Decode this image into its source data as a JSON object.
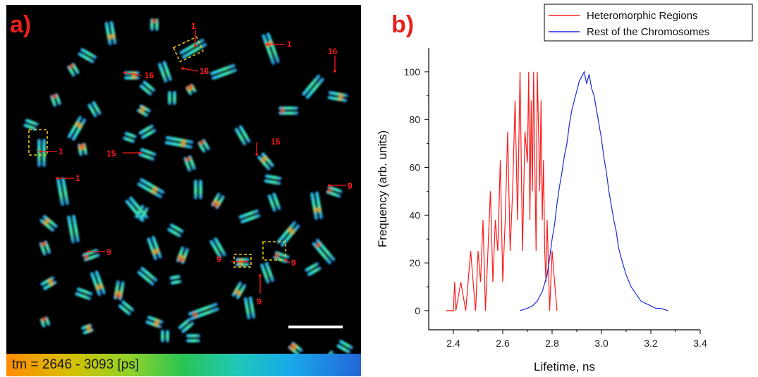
{
  "panel_a": {
    "letter": "a)",
    "colorbar_label": "tm = 2646 - 3093 [ps]",
    "annotation_color": "#ff1a1a",
    "box_color": "#e6c21f",
    "annotations": [
      "1",
      "1",
      "16",
      "16",
      "16",
      "1",
      "1",
      "15",
      "15",
      "9",
      "9",
      "9",
      "9",
      "9"
    ]
  },
  "panel_b": {
    "letter": "b)"
  },
  "chart_data": {
    "type": "line",
    "xlabel": "Lifetime, ns",
    "ylabel": "Frequency (arb. units)",
    "xlim": [
      2.3,
      3.4
    ],
    "ylim": [
      -8,
      110
    ],
    "xticks": [
      "2.4",
      "2.6",
      "2.8",
      "3.0",
      "3.2",
      "3.4"
    ],
    "yticks": [
      "0",
      "20",
      "40",
      "60",
      "80",
      "100"
    ],
    "legend_position": "top-right",
    "series": [
      {
        "name": "Heteromorphic Regions",
        "color": "#ff1a1a",
        "x": [
          2.37,
          2.4,
          2.405,
          2.41,
          2.43,
          2.45,
          2.47,
          2.48,
          2.49,
          2.5,
          2.51,
          2.52,
          2.53,
          2.54,
          2.55,
          2.56,
          2.57,
          2.58,
          2.59,
          2.6,
          2.61,
          2.62,
          2.63,
          2.64,
          2.65,
          2.66,
          2.67,
          2.68,
          2.69,
          2.7,
          2.705,
          2.71,
          2.715,
          2.72,
          2.725,
          2.73,
          2.735,
          2.74,
          2.745,
          2.75,
          2.755,
          2.76,
          2.765,
          2.77,
          2.775,
          2.78,
          2.79,
          2.8,
          2.81,
          2.82
        ],
        "y": [
          0,
          0,
          12,
          0,
          12,
          0,
          25,
          12,
          0,
          25,
          12,
          38,
          0,
          25,
          50,
          12,
          38,
          25,
          63,
          12,
          38,
          75,
          25,
          50,
          88,
          38,
          100,
          25,
          75,
          62,
          100,
          38,
          88,
          50,
          100,
          62,
          25,
          100,
          75,
          50,
          88,
          38,
          63,
          25,
          12,
          38,
          0,
          25,
          12,
          0
        ]
      },
      {
        "name": "Rest of the Chromosomes",
        "color": "#1a2bd6",
        "x": [
          2.67,
          2.7,
          2.72,
          2.74,
          2.76,
          2.78,
          2.79,
          2.8,
          2.81,
          2.82,
          2.83,
          2.84,
          2.85,
          2.86,
          2.87,
          2.88,
          2.89,
          2.9,
          2.91,
          2.92,
          2.93,
          2.94,
          2.95,
          2.96,
          2.97,
          2.98,
          2.99,
          3.0,
          3.01,
          3.02,
          3.03,
          3.04,
          3.05,
          3.06,
          3.07,
          3.08,
          3.1,
          3.12,
          3.14,
          3.16,
          3.18,
          3.2,
          3.22,
          3.24,
          3.27
        ],
        "y": [
          0,
          1,
          2,
          4,
          8,
          15,
          22,
          30,
          36,
          45,
          52,
          58,
          65,
          70,
          78,
          84,
          88,
          92,
          96,
          98,
          100,
          95,
          99,
          93,
          90,
          84,
          78,
          72,
          64,
          58,
          50,
          44,
          38,
          33,
          26,
          22,
          15,
          10,
          7,
          4,
          3,
          2,
          1,
          1,
          0
        ]
      }
    ]
  }
}
